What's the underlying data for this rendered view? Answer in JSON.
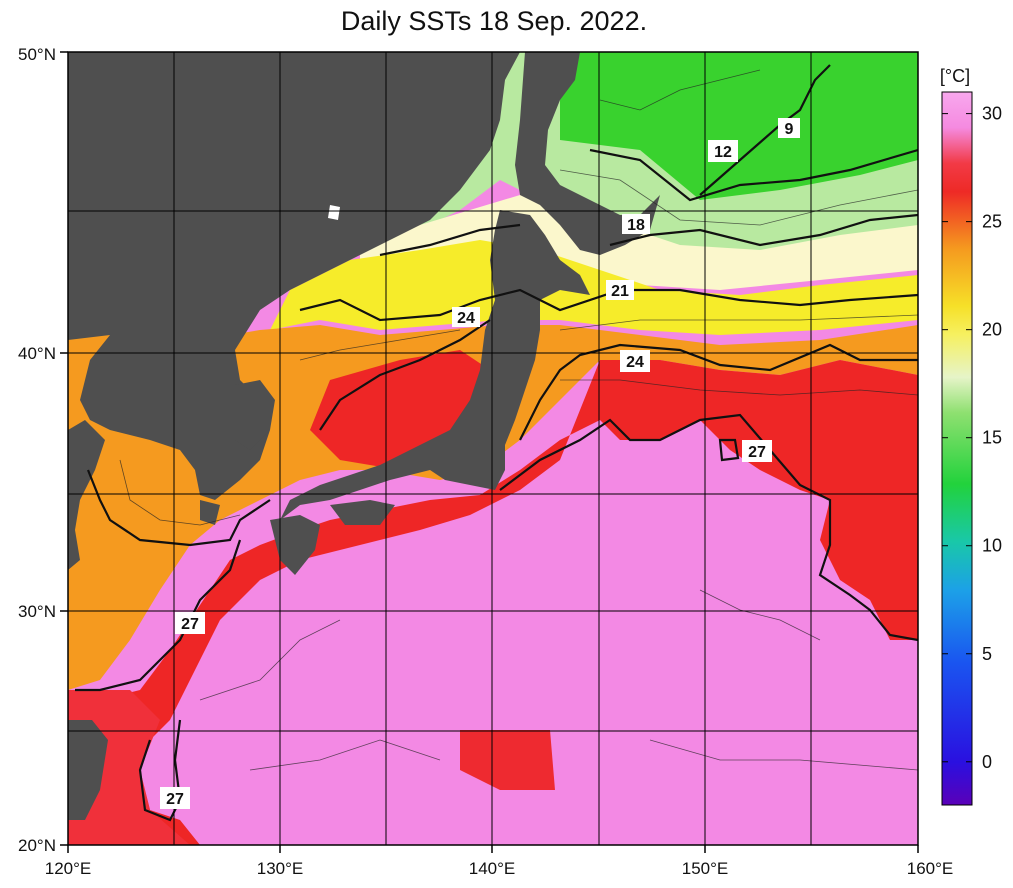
{
  "title": "Daily SSTs 18 Sep. 2022.",
  "map": {
    "lon_ticks": [
      "120°E",
      "130°E",
      "140°E",
      "150°E",
      "160°E"
    ],
    "lat_ticks": [
      "50°N",
      "40°N",
      "30°N",
      "20°N"
    ],
    "lon_range": [
      120,
      160
    ],
    "lat_range": [
      20,
      50
    ],
    "isotherm_labels": [
      "9",
      "12",
      "18",
      "21",
      "24",
      "24",
      "27",
      "27",
      "27"
    ]
  },
  "colorbar": {
    "unit": "[°C]",
    "ticks": [
      "30",
      "25",
      "20",
      "15",
      "10",
      "5",
      "0"
    ],
    "range": [
      -2,
      31
    ]
  },
  "colors": {
    "land": "#4f4f4f",
    "warm_pink": "#f389e4",
    "red": "#ee2626",
    "orange": "#f59a1f",
    "yellow": "#f6ec2a",
    "cream": "#fbf7cc",
    "light_green": "#b8e9a0",
    "green": "#39d22e"
  }
}
